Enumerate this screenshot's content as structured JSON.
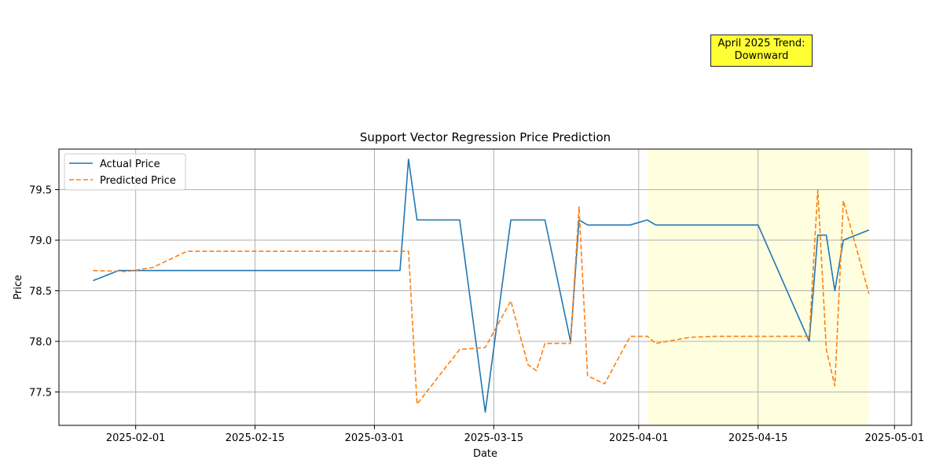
{
  "chart_data": {
    "type": "line",
    "title": "Support Vector Regression Price Prediction",
    "xlabel": "Date",
    "ylabel": "Price",
    "xlim": [
      "2025-01-23",
      "2025-05-03"
    ],
    "ylim": [
      77.17,
      79.9
    ],
    "grid": true,
    "legend_position": "upper-left",
    "x_ticks": [
      "2025-02-01",
      "2025-02-15",
      "2025-03-01",
      "2025-03-15",
      "2025-04-01",
      "2025-04-15",
      "2025-05-01"
    ],
    "y_ticks": [
      77.5,
      78.0,
      78.5,
      79.0,
      79.5
    ],
    "highlight_region": {
      "start": "2025-04-02",
      "end": "2025-04-28",
      "color": "#ffffe0"
    },
    "annotation": {
      "lines": [
        "April 2025 Trend:",
        "Downward"
      ],
      "color": "#ffff33"
    },
    "series": [
      {
        "name": "Actual Price",
        "color": "#1f77b4",
        "style": "solid",
        "points": [
          [
            "2025-01-27",
            78.6
          ],
          [
            "2025-01-30",
            78.7
          ],
          [
            "2025-02-03",
            78.7
          ],
          [
            "2025-03-04",
            78.7
          ],
          [
            "2025-03-05",
            79.8
          ],
          [
            "2025-03-06",
            79.2
          ],
          [
            "2025-03-11",
            79.2
          ],
          [
            "2025-03-14",
            77.3
          ],
          [
            "2025-03-17",
            79.2
          ],
          [
            "2025-03-21",
            79.2
          ],
          [
            "2025-03-24",
            78.0
          ],
          [
            "2025-03-25",
            79.2
          ],
          [
            "2025-03-26",
            79.15
          ],
          [
            "2025-03-31",
            79.15
          ],
          [
            "2025-04-02",
            79.2
          ],
          [
            "2025-04-03",
            79.15
          ],
          [
            "2025-04-15",
            79.15
          ],
          [
            "2025-04-21",
            78.0
          ],
          [
            "2025-04-22",
            79.05
          ],
          [
            "2025-04-23",
            79.05
          ],
          [
            "2025-04-24",
            78.5
          ],
          [
            "2025-04-25",
            79.0
          ],
          [
            "2025-04-28",
            79.1
          ]
        ]
      },
      {
        "name": "Predicted Price",
        "color": "#ff7f0e",
        "style": "dashed",
        "points": [
          [
            "2025-01-27",
            78.7
          ],
          [
            "2025-01-31",
            78.69
          ],
          [
            "2025-02-03",
            78.73
          ],
          [
            "2025-02-07",
            78.89
          ],
          [
            "2025-03-05",
            78.89
          ],
          [
            "2025-03-06",
            77.38
          ],
          [
            "2025-03-11",
            77.92
          ],
          [
            "2025-03-14",
            77.94
          ],
          [
            "2025-03-17",
            78.4
          ],
          [
            "2025-03-19",
            77.77
          ],
          [
            "2025-03-20",
            77.71
          ],
          [
            "2025-03-21",
            77.98
          ],
          [
            "2025-03-24",
            77.98
          ],
          [
            "2025-03-25",
            79.33
          ],
          [
            "2025-03-26",
            77.66
          ],
          [
            "2025-03-28",
            77.58
          ],
          [
            "2025-03-31",
            78.05
          ],
          [
            "2025-04-02",
            78.05
          ],
          [
            "2025-04-03",
            77.98
          ],
          [
            "2025-04-07",
            78.04
          ],
          [
            "2025-04-10",
            78.05
          ],
          [
            "2025-04-21",
            78.05
          ],
          [
            "2025-04-22",
            79.5
          ],
          [
            "2025-04-23",
            77.92
          ],
          [
            "2025-04-24",
            77.56
          ],
          [
            "2025-04-25",
            79.39
          ],
          [
            "2025-04-28",
            78.47
          ]
        ]
      }
    ]
  }
}
